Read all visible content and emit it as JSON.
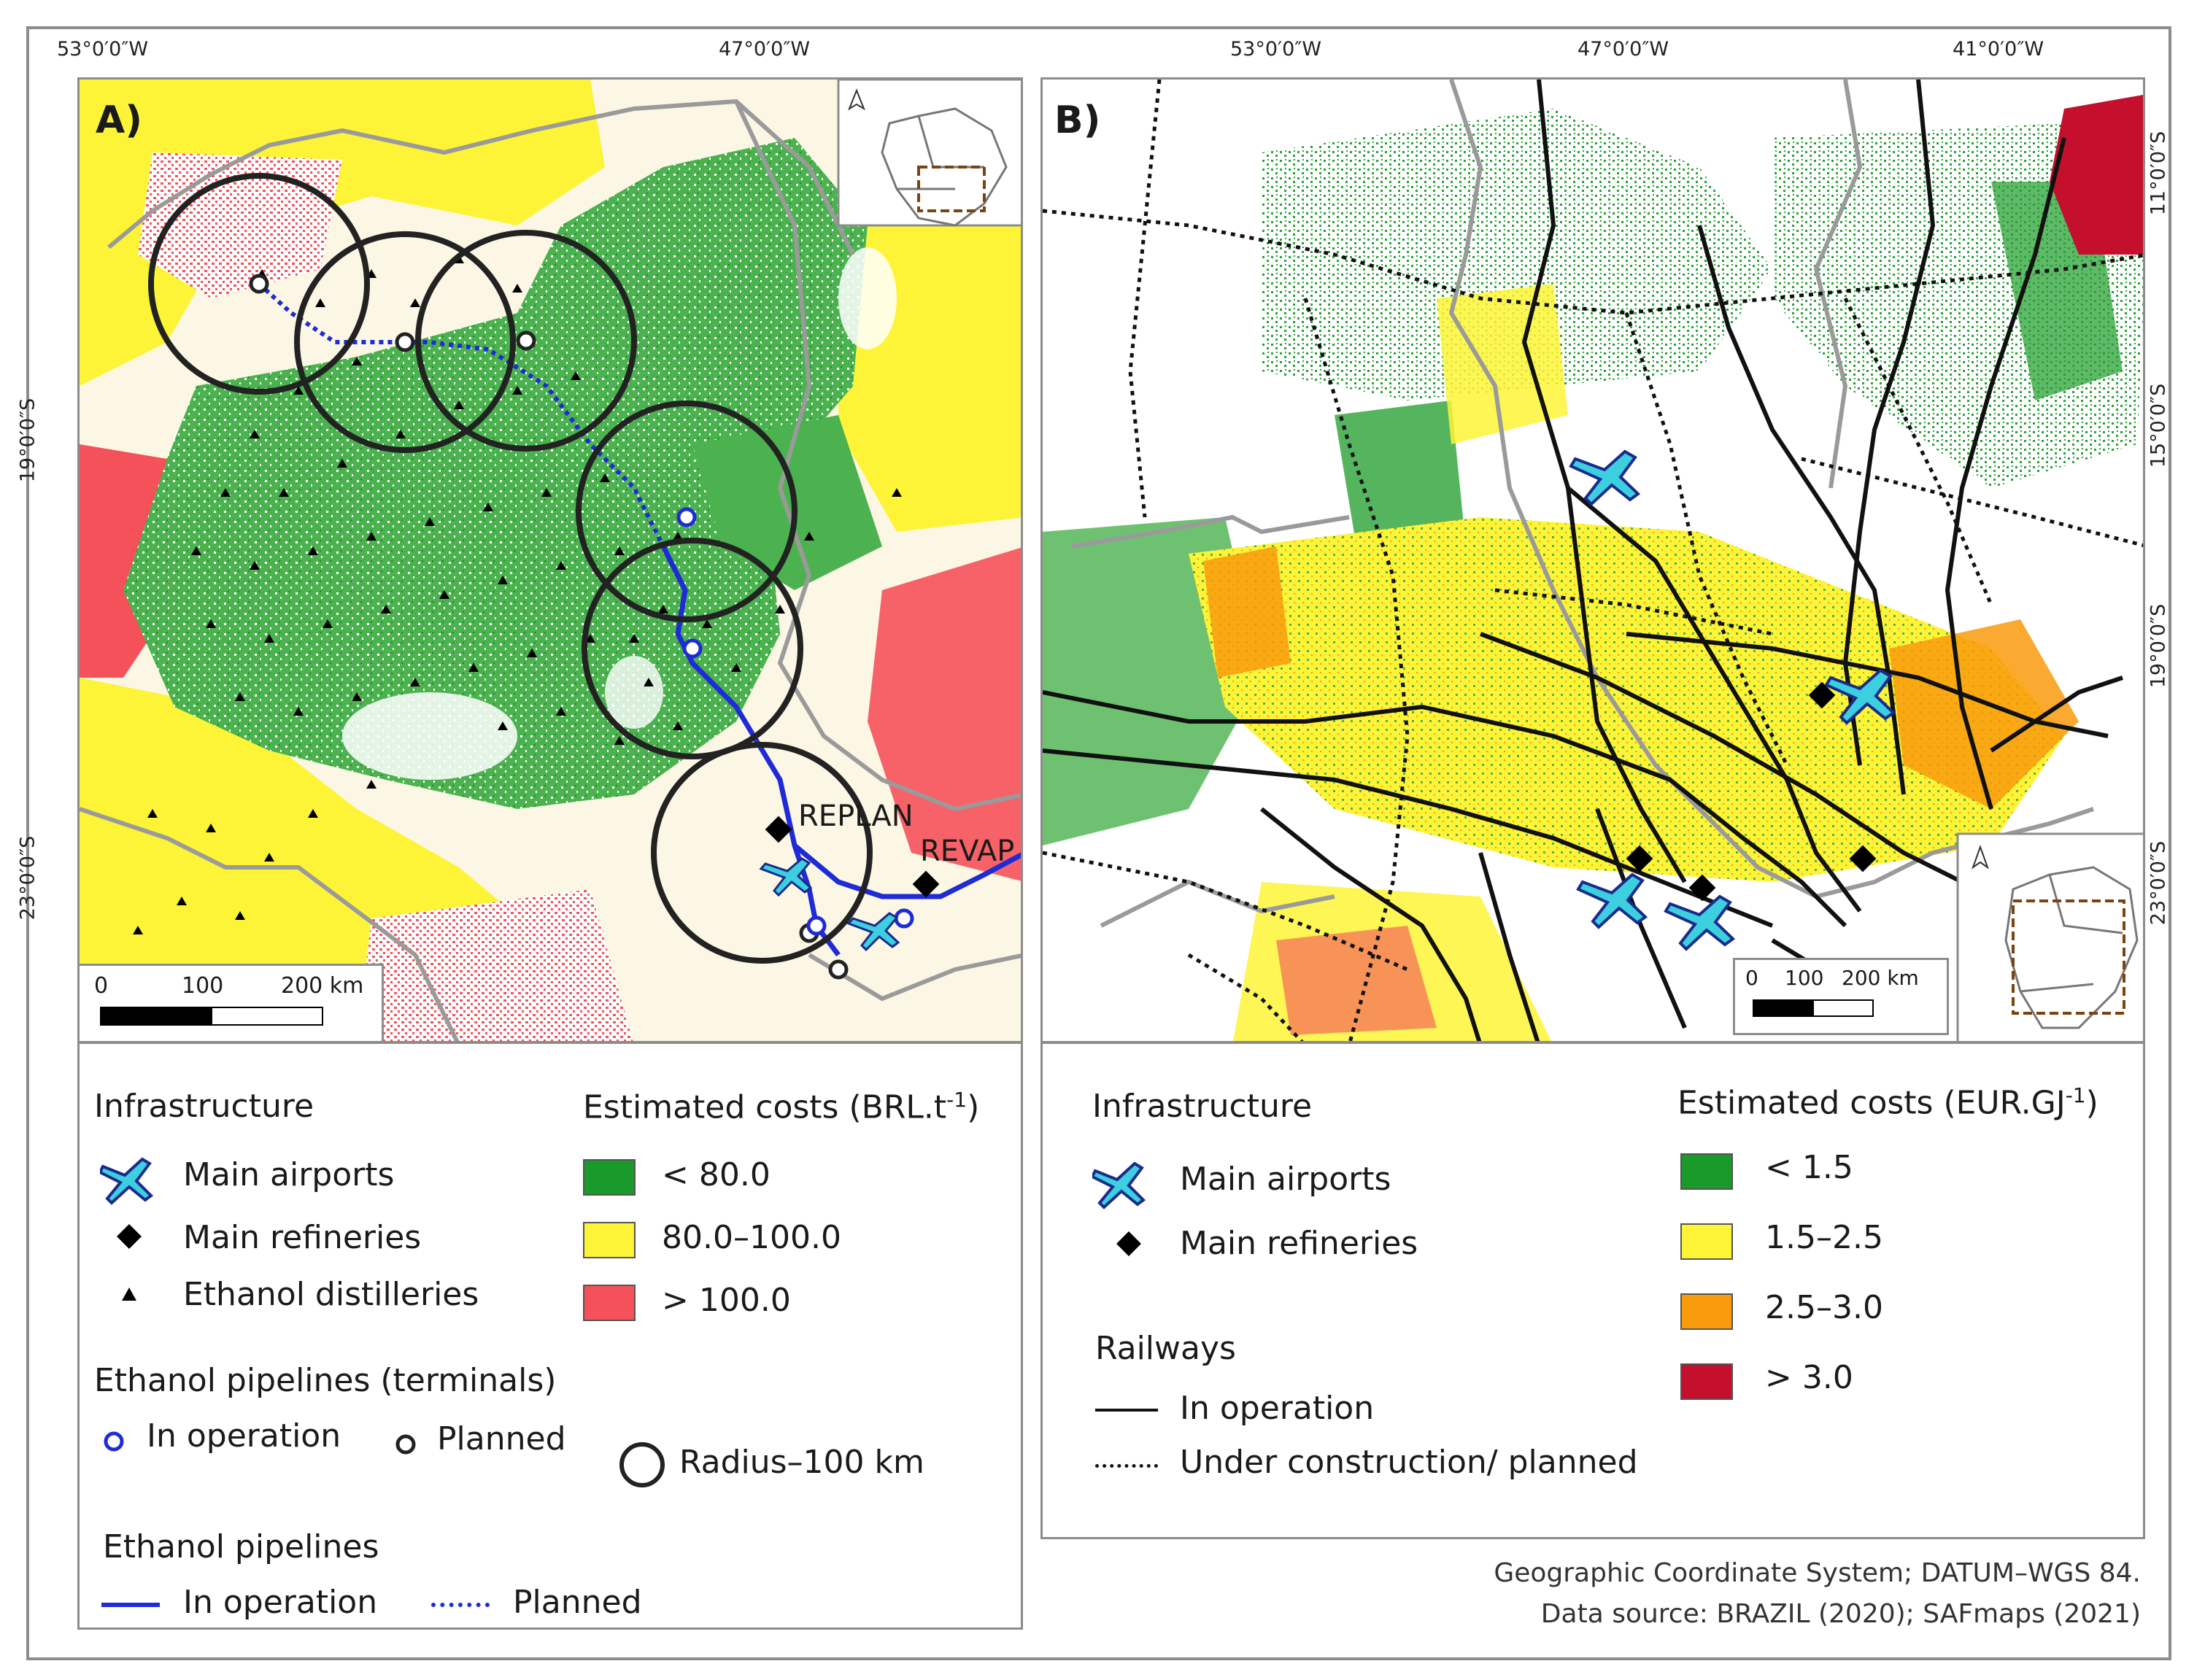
{
  "coords": {
    "a_top": [
      "53°0′0″W",
      "47°0′0″W"
    ],
    "a_left": [
      "19°0′0″S",
      "23°0′0″S"
    ],
    "b_top": [
      "53°0′0″W",
      "47°0′0″W",
      "41°0′0″W"
    ],
    "b_right": [
      "11°0′0″S",
      "15°0′0″S",
      "19°0′0″S",
      "23°0′0″S"
    ]
  },
  "map_a": {
    "panel_label": "A)",
    "refinery_labels": [
      "REPLAN",
      "REVAP"
    ],
    "scale": {
      "ticks": [
        "0",
        "100",
        "200 km"
      ]
    }
  },
  "map_b": {
    "panel_label": "B)",
    "scale": {
      "ticks": [
        "0",
        "100",
        "200 km"
      ]
    }
  },
  "legend_a": {
    "infrastructure_title": "Infrastructure",
    "airports": "Main airports",
    "refineries": "Main refineries",
    "distilleries": "Ethanol distilleries",
    "costs_title": "Estimated costs (BRL.t",
    "costs_unit_sup": "-1",
    "costs_unit_close": ")",
    "cost_classes": [
      {
        "label": "< 80.0",
        "color": "#1a9a2a"
      },
      {
        "label": "80.0–100.0",
        "color": "#fdf437"
      },
      {
        "label": "> 100.0",
        "color": "#f5515a"
      }
    ],
    "terminals_title": "Ethanol pipelines (terminals)",
    "terminal_in_operation": "In operation",
    "terminal_planned": "Planned",
    "radius": "Radius–100 km",
    "pipelines_title": "Ethanol pipelines",
    "pipeline_in_operation": "In operation",
    "pipeline_planned": "Planned"
  },
  "legend_b": {
    "infrastructure_title": "Infrastructure",
    "airports": "Main airports",
    "refineries": "Main refineries",
    "railways_title": "Railways",
    "rail_in_operation": "In operation",
    "rail_planned": "Under construction/ planned",
    "costs_title": "Estimated costs (EUR.GJ",
    "costs_unit_sup": "-1",
    "costs_unit_close": ")",
    "cost_classes": [
      {
        "label": "< 1.5",
        "color": "#1a9a2a"
      },
      {
        "label": "1.5–2.5",
        "color": "#fdf437"
      },
      {
        "label": "2.5–3.0",
        "color": "#f99b0c"
      },
      {
        "label": "> 3.0",
        "color": "#c4102c"
      }
    ]
  },
  "notes": {
    "line1": "Geographic Coordinate System; DATUM–WGS 84.",
    "line2": "Data source: BRAZIL (2020); SAFmaps (2021)"
  }
}
